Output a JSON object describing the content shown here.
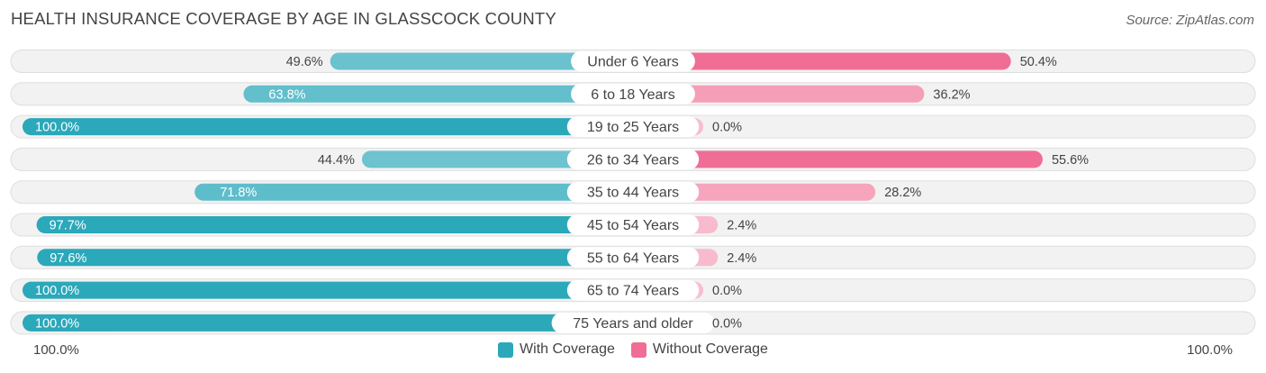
{
  "title": "HEALTH INSURANCE COVERAGE BY AGE IN GLASSCOCK COUNTY",
  "source": "Source: ZipAtlas.com",
  "axis": {
    "left_label": "100.0%",
    "right_label": "100.0%"
  },
  "legend": {
    "with": {
      "label": "With Coverage",
      "color": "#2ba8b9"
    },
    "without": {
      "label": "Without Coverage",
      "color": "#f06d95"
    }
  },
  "chart_data": {
    "type": "bar",
    "orientation": "diverging-horizontal",
    "title": "HEALTH INSURANCE COVERAGE BY AGE IN GLASSCOCK COUNTY",
    "categories": [
      "Under 6 Years",
      "6 to 18 Years",
      "19 to 25 Years",
      "26 to 34 Years",
      "35 to 44 Years",
      "45 to 54 Years",
      "55 to 64 Years",
      "65 to 74 Years",
      "75 Years and older"
    ],
    "series": [
      {
        "name": "With Coverage",
        "values": [
          49.6,
          63.8,
          100.0,
          44.4,
          71.8,
          97.7,
          97.6,
          100.0,
          100.0
        ],
        "labels": [
          "49.6%",
          "63.8%",
          "100.0%",
          "44.4%",
          "71.8%",
          "97.7%",
          "97.6%",
          "100.0%",
          "100.0%"
        ]
      },
      {
        "name": "Without Coverage",
        "values": [
          50.4,
          36.2,
          0.0,
          55.6,
          28.2,
          2.4,
          2.4,
          0.0,
          0.0
        ],
        "labels": [
          "50.4%",
          "36.2%",
          "0.0%",
          "55.6%",
          "28.2%",
          "2.4%",
          "2.4%",
          "0.0%",
          "0.0%"
        ]
      }
    ],
    "xlim": [
      -100,
      100
    ],
    "legend_position": "bottom-center"
  }
}
